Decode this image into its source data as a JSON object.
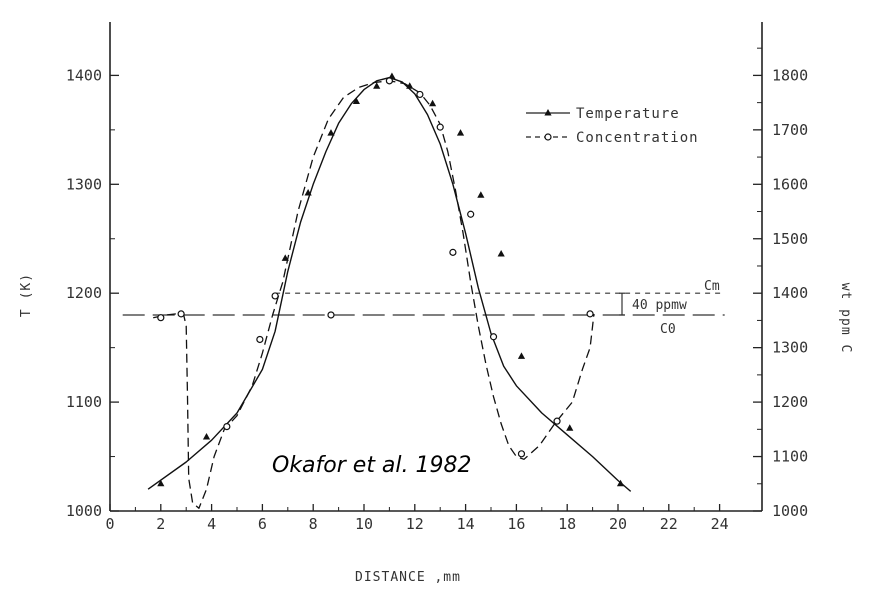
{
  "chart_data": {
    "type": "line",
    "xlabel": "DISTANCE ,mm",
    "ylabel_left": "T (K)",
    "ylabel_right": "wt ppm C",
    "xlim": [
      0,
      25
    ],
    "ylim_left": [
      1000,
      1450
    ],
    "ylim_right": [
      1000,
      1900
    ],
    "x_ticks": [
      "0",
      "2",
      "4",
      "6",
      "8",
      "10",
      "12",
      "14",
      "16",
      "18",
      "20",
      "22",
      "24"
    ],
    "y_left_ticks": [
      "1000",
      "1100",
      "1200",
      "1300",
      "1400"
    ],
    "y_right_ticks": [
      "1000",
      "1100",
      "1200",
      "1300",
      "1400",
      "1500",
      "1600",
      "1700",
      "1800"
    ],
    "grid": false,
    "legend_position": "top-right",
    "series": [
      {
        "name": "Temperature",
        "axis": "left",
        "color": "#111111",
        "line": "solid",
        "marker": "triangle",
        "curve_x": [
          1.5,
          3,
          4,
          5,
          6,
          6.5,
          7,
          7.5,
          8,
          8.5,
          9,
          9.5,
          10,
          10.5,
          11,
          11.5,
          12,
          12.5,
          13,
          13.5,
          14,
          14.5,
          15,
          15.5,
          16,
          17,
          18,
          19,
          20,
          20.5
        ],
        "curve_y": [
          1020,
          1045,
          1065,
          1090,
          1130,
          1165,
          1220,
          1265,
          1300,
          1330,
          1356,
          1374,
          1387,
          1395,
          1398,
          1394,
          1383,
          1364,
          1337,
          1300,
          1255,
          1205,
          1163,
          1133,
          1115,
          1090,
          1070,
          1050,
          1028,
          1018
        ],
        "marker_x": [
          2,
          3.8,
          6.9,
          7.8,
          8.7,
          9.7,
          10.5,
          11.1,
          11.8,
          12.7,
          13.8,
          14.6,
          15.4,
          16.2,
          18.1,
          20.1
        ],
        "marker_y": [
          1025,
          1068,
          1232,
          1292,
          1347,
          1376,
          1390,
          1399,
          1390,
          1374,
          1347,
          1290,
          1236,
          1142,
          1076,
          1025
        ]
      },
      {
        "name": "Concentration",
        "axis": "right",
        "color": "#111111",
        "line": "dashed",
        "marker": "circle",
        "curve_x": [
          1.7,
          2.2,
          2.6,
          2.9,
          3.0,
          3.05,
          3.1,
          3.25,
          3.5,
          3.8,
          4.1,
          4.5,
          5,
          5.6,
          6,
          6.4,
          6.8,
          7.4,
          8,
          8.6,
          9.2,
          9.8,
          10.4,
          11,
          11.6,
          12.2,
          12.6,
          13,
          13.3,
          13.6,
          13.9,
          14.2,
          14.5,
          14.8,
          15.1,
          15.4,
          15.7,
          16,
          16.3,
          16.9,
          17.5,
          18.2,
          18.6,
          18.9,
          19.0,
          19.05
        ],
        "curve_y": [
          1355,
          1360,
          1362,
          1360,
          1340,
          1210,
          1060,
          1015,
          1005,
          1040,
          1100,
          1150,
          1175,
          1230,
          1290,
          1360,
          1420,
          1550,
          1650,
          1720,
          1760,
          1778,
          1787,
          1790,
          1785,
          1768,
          1745,
          1710,
          1660,
          1590,
          1510,
          1420,
          1340,
          1270,
          1210,
          1160,
          1120,
          1100,
          1095,
          1120,
          1160,
          1200,
          1260,
          1300,
          1340,
          1362
        ],
        "marker_x": [
          2.0,
          2.8,
          4.6,
          5.9,
          6.5,
          8.7,
          11.0,
          12.2,
          13.0,
          13.5,
          14.2,
          15.1,
          16.2,
          17.6,
          18.9
        ],
        "marker_y": [
          1355,
          1362,
          1155,
          1315,
          1395,
          1360,
          1790,
          1765,
          1705,
          1475,
          1545,
          1320,
          1105,
          1165,
          1362
        ]
      }
    ],
    "reference_lines": [
      {
        "label": "Cm",
        "axis": "right",
        "y": 1400,
        "style": "short-dash",
        "x_range": [
          6.5,
          24.2
        ]
      },
      {
        "label": "C0",
        "axis": "right",
        "y": 1360,
        "style": "long-dash",
        "x_range": [
          0.5,
          24.2
        ]
      }
    ],
    "annotations": {
      "gap_label": "40 ppmw",
      "cm_label": "Cm",
      "c0_label": "C0",
      "citation": "Okafor et al. 1982"
    }
  }
}
